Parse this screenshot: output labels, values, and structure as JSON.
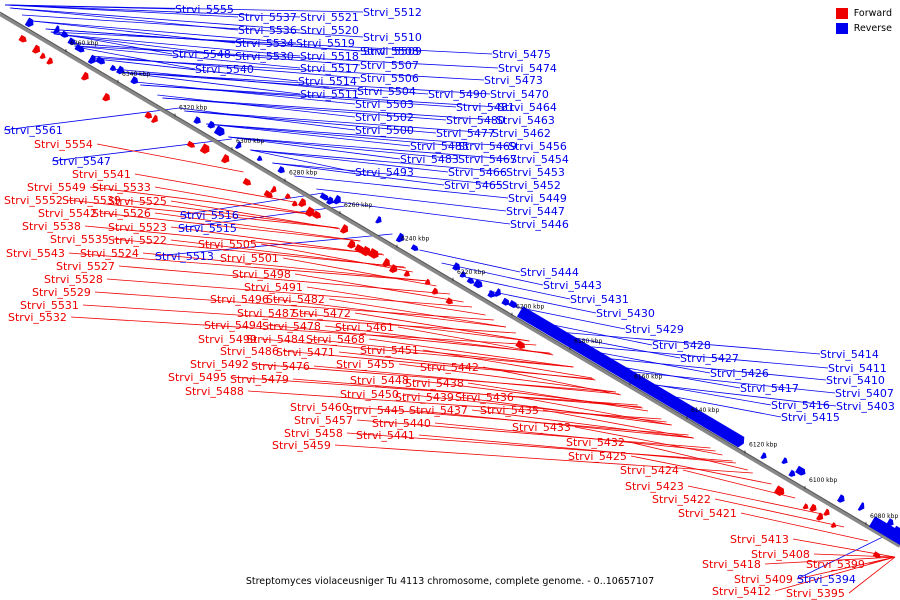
{
  "caption": "Streptomyces violaceusniger Tu 4113 chromosome, complete genome. - 0..10657107",
  "legend": {
    "forward": {
      "label": "Forward",
      "color": "#ee0000"
    },
    "reverse": {
      "label": "Reverse",
      "color": "#0000ee"
    }
  },
  "axis_ticks": [
    "6360 kbp",
    "6340 kbp",
    "6320 kbp",
    "6300 kbp",
    "6280 kbp",
    "6260 kbp",
    "6240 kbp",
    "6220 kbp",
    "6200 kbp",
    "6180 kbp",
    "6160 kbp",
    "6140 kbp",
    "6120 kbp",
    "6100 kbp",
    "6080 kbp"
  ],
  "reverse_labels": [
    "Strvi_5555",
    "Strvi_5537",
    "Strvi_5521",
    "Strvi_5512",
    "Strvi_5536",
    "Strvi_5520",
    "Strvi_5510",
    "Strvi_5534",
    "Strvi_5519",
    "Strvi_5509",
    "Strvi_5548",
    "Strvi_5530",
    "Strvi_5518",
    "Strvi_5508",
    "Strvi_5540",
    "Strvi_5517",
    "Strvi_5507",
    "Strvi_5514",
    "Strvi_5506",
    "Strvi_5511",
    "Strvi_5504",
    "Strvi_5503",
    "Strvi_5502",
    "Strvi_5500",
    "Strvi_5561",
    "Strvi_5547",
    "Strvi_5516",
    "Strvi_5515",
    "Strvi_5513",
    "Strvi_5475",
    "Strvi_5474",
    "Strvi_5473",
    "Strvi_5490",
    "Strvi_5470",
    "Strvi_5481",
    "Strvi_5464",
    "Strvi_5480",
    "Strvi_5463",
    "Strvi_5477",
    "Strvi_5462",
    "Strvi_5485",
    "Strvi_5469",
    "Strvi_5456",
    "Strvi_5483",
    "Strvi_5467",
    "Strvi_5454",
    "Strvi_5466",
    "Strvi_5453",
    "Strvi_5493",
    "Strvi_5465",
    "Strvi_5452",
    "Strvi_5449",
    "Strvi_5447",
    "Strvi_5446",
    "Strvi_5444",
    "Strvi_5443",
    "Strvi_5431",
    "Strvi_5430",
    "Strvi_5429",
    "Strvi_5428",
    "Strvi_5427",
    "Strvi_5426",
    "Strvi_5417",
    "Strvi_5416",
    "Strvi_5415",
    "Strvi_5414",
    "Strvi_5411",
    "Strvi_5410",
    "Strvi_5407",
    "Strvi_5403",
    "Strvi_5394"
  ],
  "forward_labels": [
    "Strvi_5554",
    "Strvi_5541",
    "Strvi_5549",
    "Strvi_5533",
    "Strvi_5552",
    "Strvi_5539",
    "Strvi_5542",
    "Strvi_5526",
    "Strvi_5525",
    "Strvi_5538",
    "Strvi_5523",
    "Strvi_5535",
    "Strvi_5522",
    "Strvi_5543",
    "Strvi_5524",
    "Strvi_5527",
    "Strvi_5528",
    "Strvi_5529",
    "Strvi_5531",
    "Strvi_5532",
    "Strvi_5505",
    "Strvi_5501",
    "Strvi_5498",
    "Strvi_5491",
    "Strvi_5496",
    "Strvi_5482",
    "Strvi_5487",
    "Strvi_5472",
    "Strvi_5494",
    "Strvi_5478",
    "Strvi_5461",
    "Strvi_5499",
    "Strvi_5484",
    "Strvi_5468",
    "Strvi_5486",
    "Strvi_5471",
    "Strvi_5451",
    "Strvi_5492",
    "Strvi_5476",
    "Strvi_5455",
    "Strvi_5442",
    "Strvi_5495",
    "Strvi_5479",
    "Strvi_5448",
    "Strvi_5438",
    "Strvi_5488",
    "Strvi_5450",
    "Strvi_5439",
    "Strvi_5436",
    "Strvi_5460",
    "Strvi_5445",
    "Strvi_5437",
    "Strvi_5435",
    "Strvi_5457",
    "Strvi_5440",
    "Strvi_5458",
    "Strvi_5441",
    "Strvi_5433",
    "Strvi_5459",
    "Strvi_5432",
    "Strvi_5425",
    "Strvi_5424",
    "Strvi_5423",
    "Strvi_5422",
    "Strvi_5421",
    "Strvi_5413",
    "Strvi_5408",
    "Strvi_5418",
    "Strvi_5409",
    "Strvi_5399",
    "Strvi_5412",
    "Strvi_5395"
  ]
}
